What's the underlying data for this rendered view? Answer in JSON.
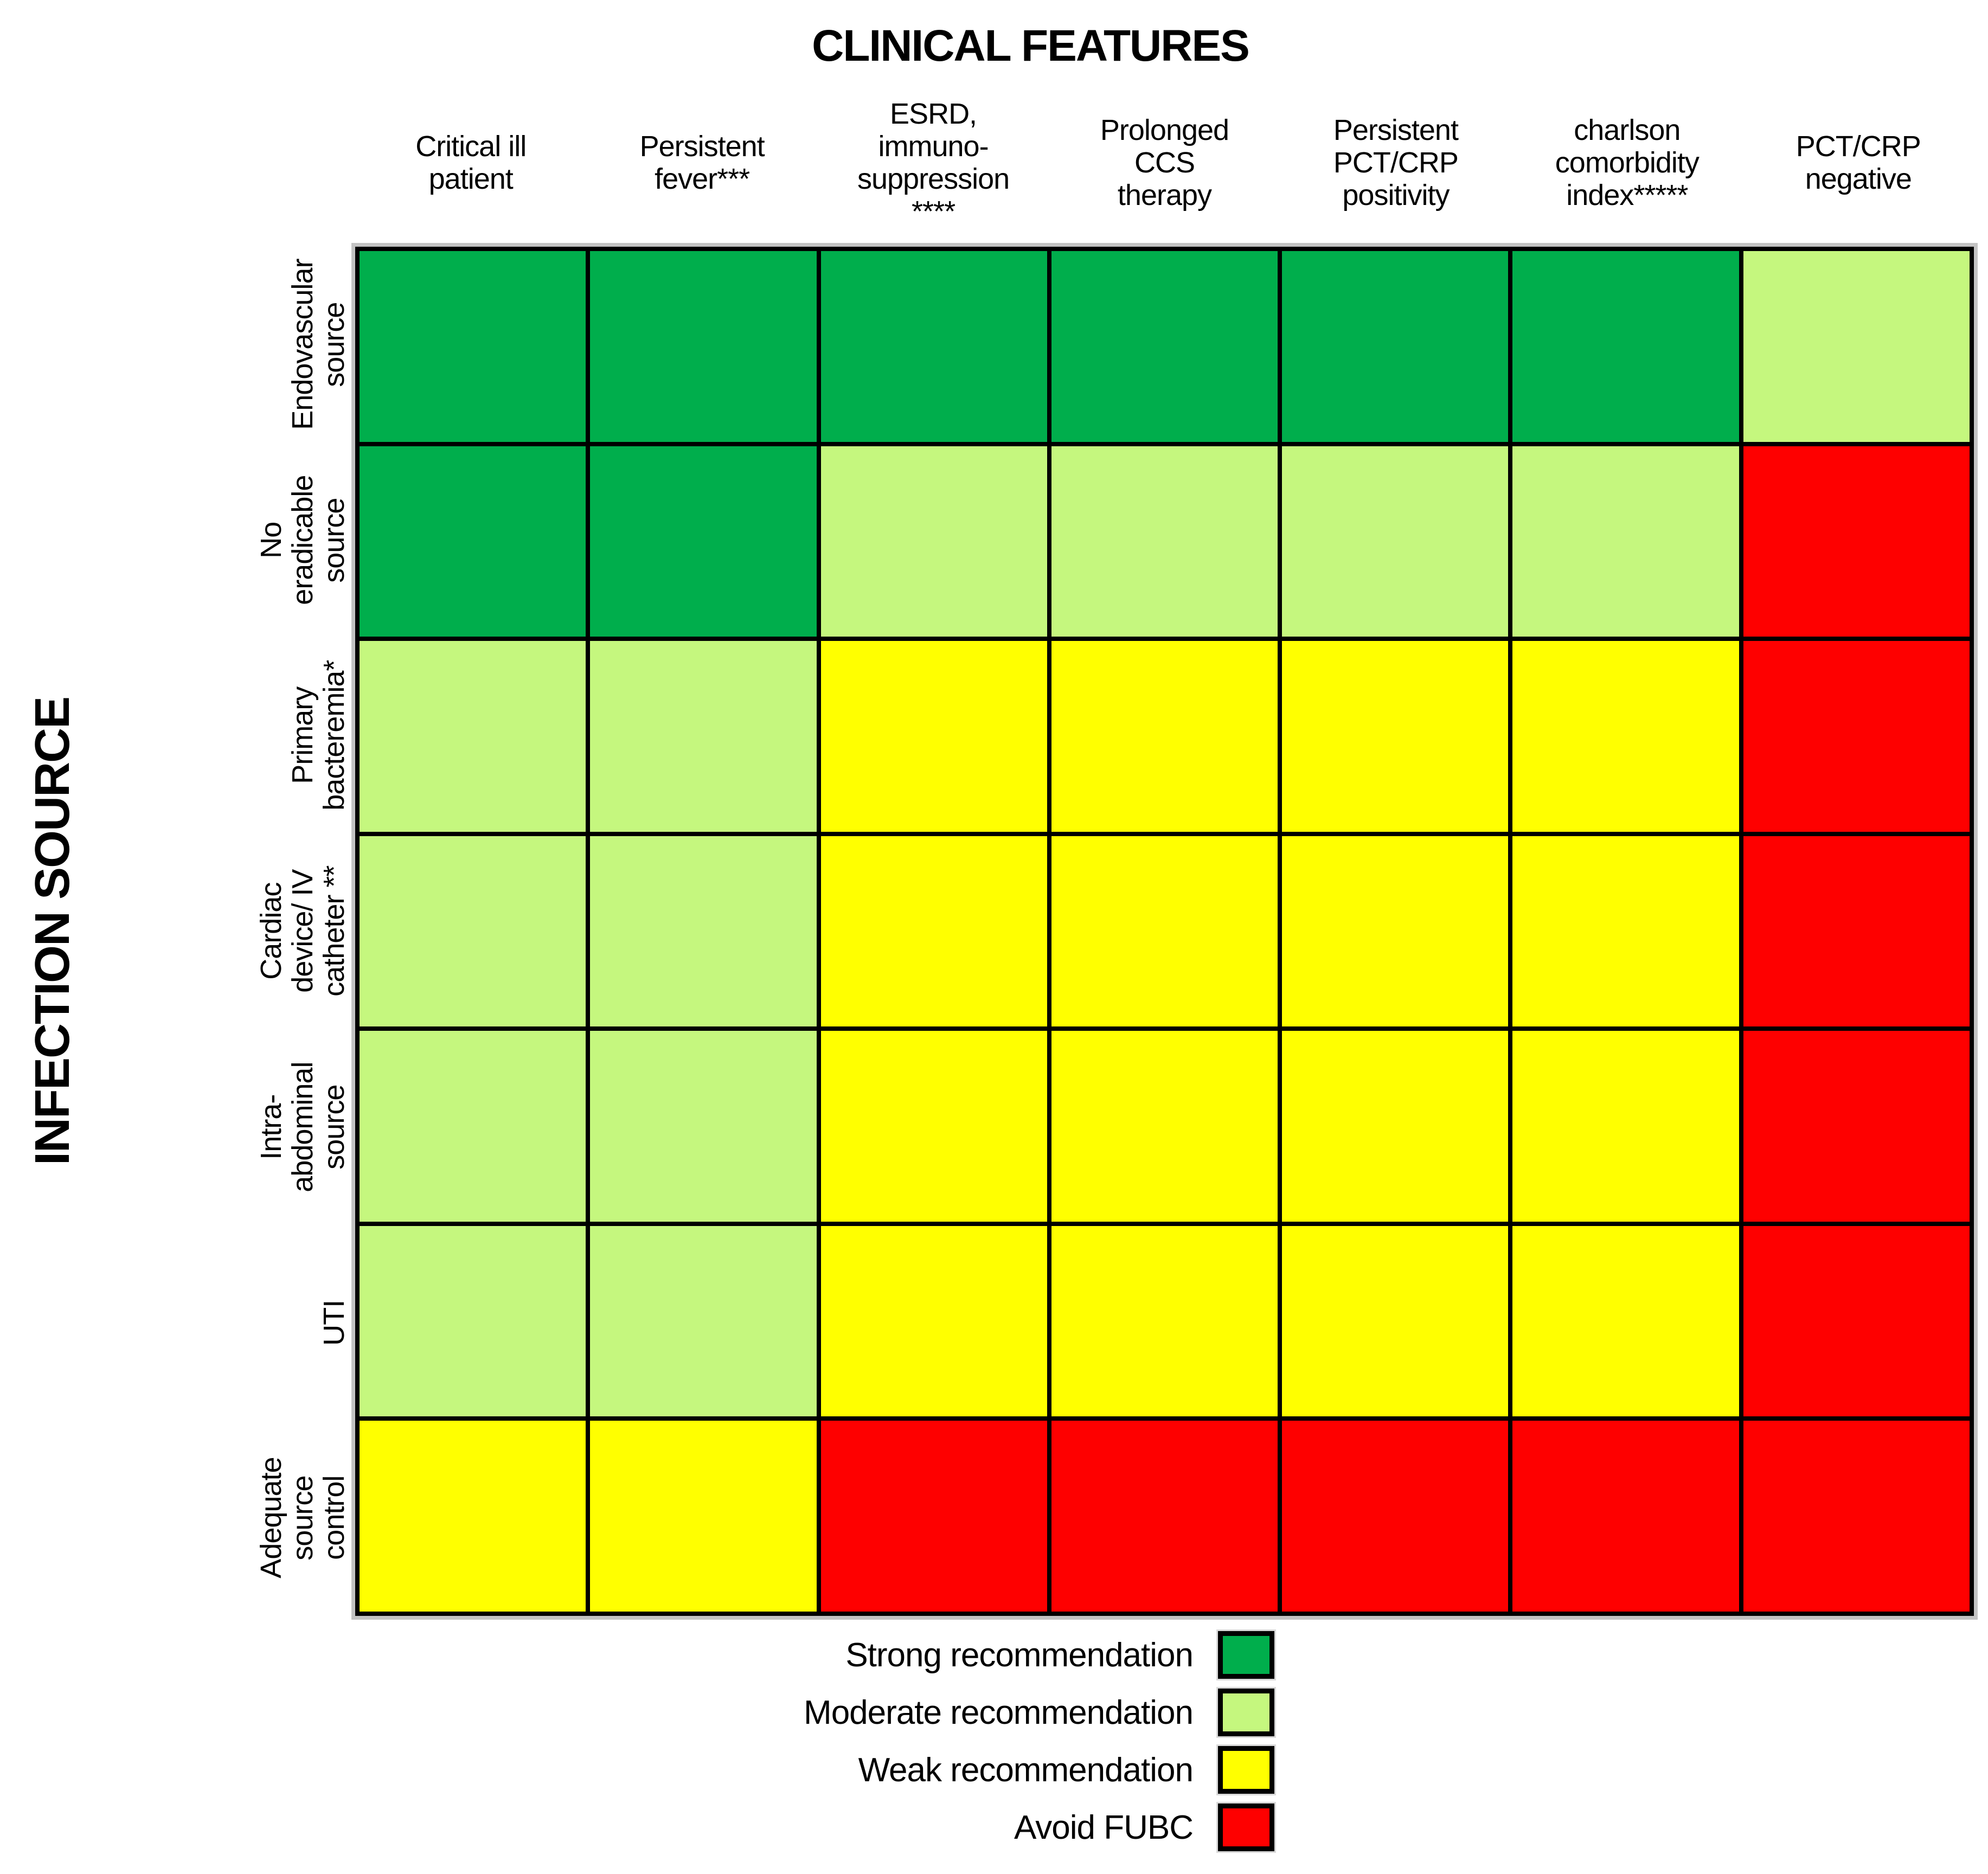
{
  "chart_data": {
    "type": "heatmap",
    "x_axis_label": "CLINICAL FEATURES",
    "y_axis_label": "INFECTION SOURCE",
    "columns": [
      "Critical ill\npatient",
      "Persistent\nfever***",
      "ESRD,\nimmuno-\nsuppression\n****",
      "Prolonged\nCCS\ntherapy",
      "Persistent\nPCT/CRP\npositivity",
      "charlson\ncomorbidity\nindex*****",
      "PCT/CRP\nnegative"
    ],
    "rows": [
      "Endovascular\nsource",
      "No\neradicable\nsource",
      "Primary\nbacteremia*",
      "Cardiac\ndevice/ IV\ncatheter **",
      "Intra-\nabdominal\nsource",
      "UTI",
      "Adequate\nsource\ncontrol"
    ],
    "values": [
      [
        "strong",
        "strong",
        "strong",
        "strong",
        "strong",
        "strong",
        "moderate"
      ],
      [
        "strong",
        "strong",
        "moderate",
        "moderate",
        "moderate",
        "moderate",
        "avoid"
      ],
      [
        "moderate",
        "moderate",
        "weak",
        "weak",
        "weak",
        "weak",
        "avoid"
      ],
      [
        "moderate",
        "moderate",
        "weak",
        "weak",
        "weak",
        "weak",
        "avoid"
      ],
      [
        "moderate",
        "moderate",
        "weak",
        "weak",
        "weak",
        "weak",
        "avoid"
      ],
      [
        "moderate",
        "moderate",
        "weak",
        "weak",
        "weak",
        "weak",
        "avoid"
      ],
      [
        "weak",
        "weak",
        "avoid",
        "avoid",
        "avoid",
        "avoid",
        "avoid"
      ]
    ],
    "levels": {
      "strong": {
        "label": "Strong recommendation",
        "color": "#00AE4C"
      },
      "moderate": {
        "label": "Moderate recommendation",
        "color": "#C5F77E"
      },
      "weak": {
        "label": "Weak recommendation",
        "color": "#FFFF00"
      },
      "avoid": {
        "label": "Avoid FUBC",
        "color": "#FE0000"
      }
    },
    "legend_order": [
      "strong",
      "moderate",
      "weak",
      "avoid"
    ],
    "legend_position": "bottom",
    "grid_line_color": "#000000",
    "background_color": "#ffffff"
  }
}
